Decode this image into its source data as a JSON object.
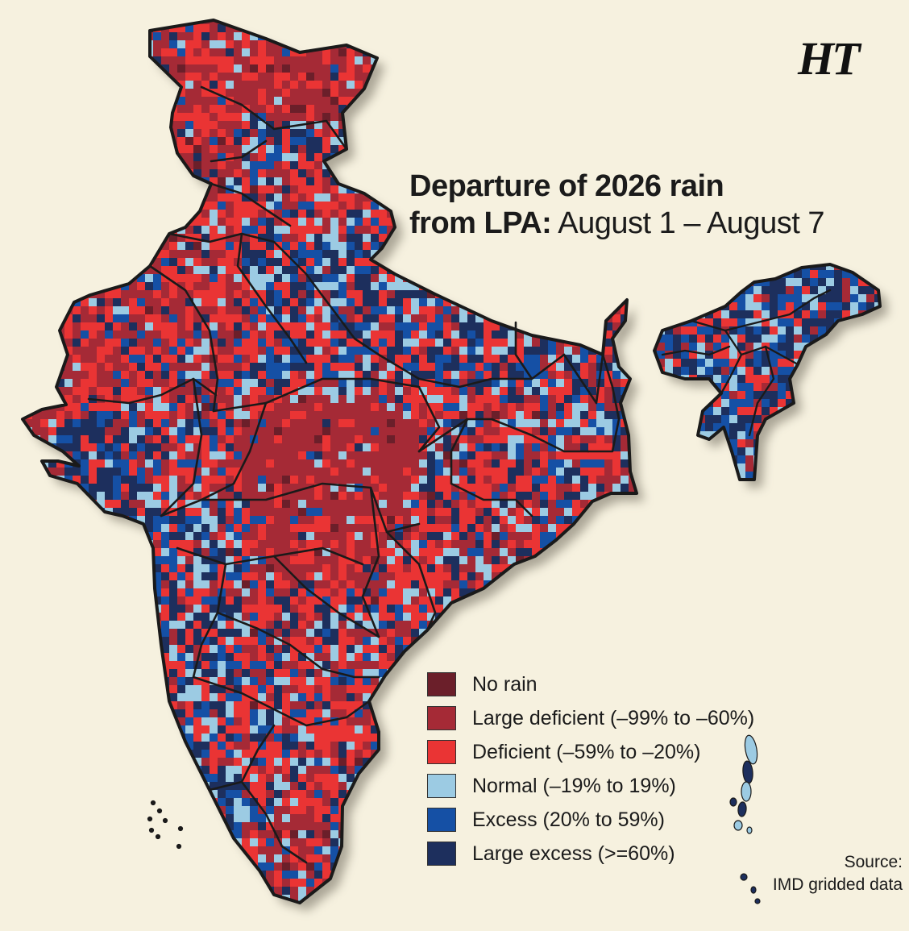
{
  "logo": "HT",
  "title": {
    "line1": "Departure of 2026 rain",
    "line2_bold": "from LPA:",
    "line2_rest": " August 1 – August 7"
  },
  "legend": [
    {
      "label": "No rain",
      "color": "#6b1f2a",
      "category": "no-rain"
    },
    {
      "label": "Large deficient (–99% to –60%)",
      "color": "#a52a36",
      "category": "large-deficient"
    },
    {
      "label": "Deficient (–59% to –20%)",
      "color": "#ea3434",
      "category": "deficient"
    },
    {
      "label": "Normal (–19% to 19%)",
      "color": "#9ccbe3",
      "category": "normal"
    },
    {
      "label": "Excess (20% to 59%)",
      "color": "#1550a5",
      "category": "excess"
    },
    {
      "label": "Large excess (>=60%)",
      "color": "#1d2f5d",
      "category": "large-excess"
    }
  ],
  "source": {
    "line1": "Source:",
    "line2": "IMD gridded data"
  },
  "colors": {
    "background": "#f6f1df",
    "border": "#1a1a1a"
  }
}
